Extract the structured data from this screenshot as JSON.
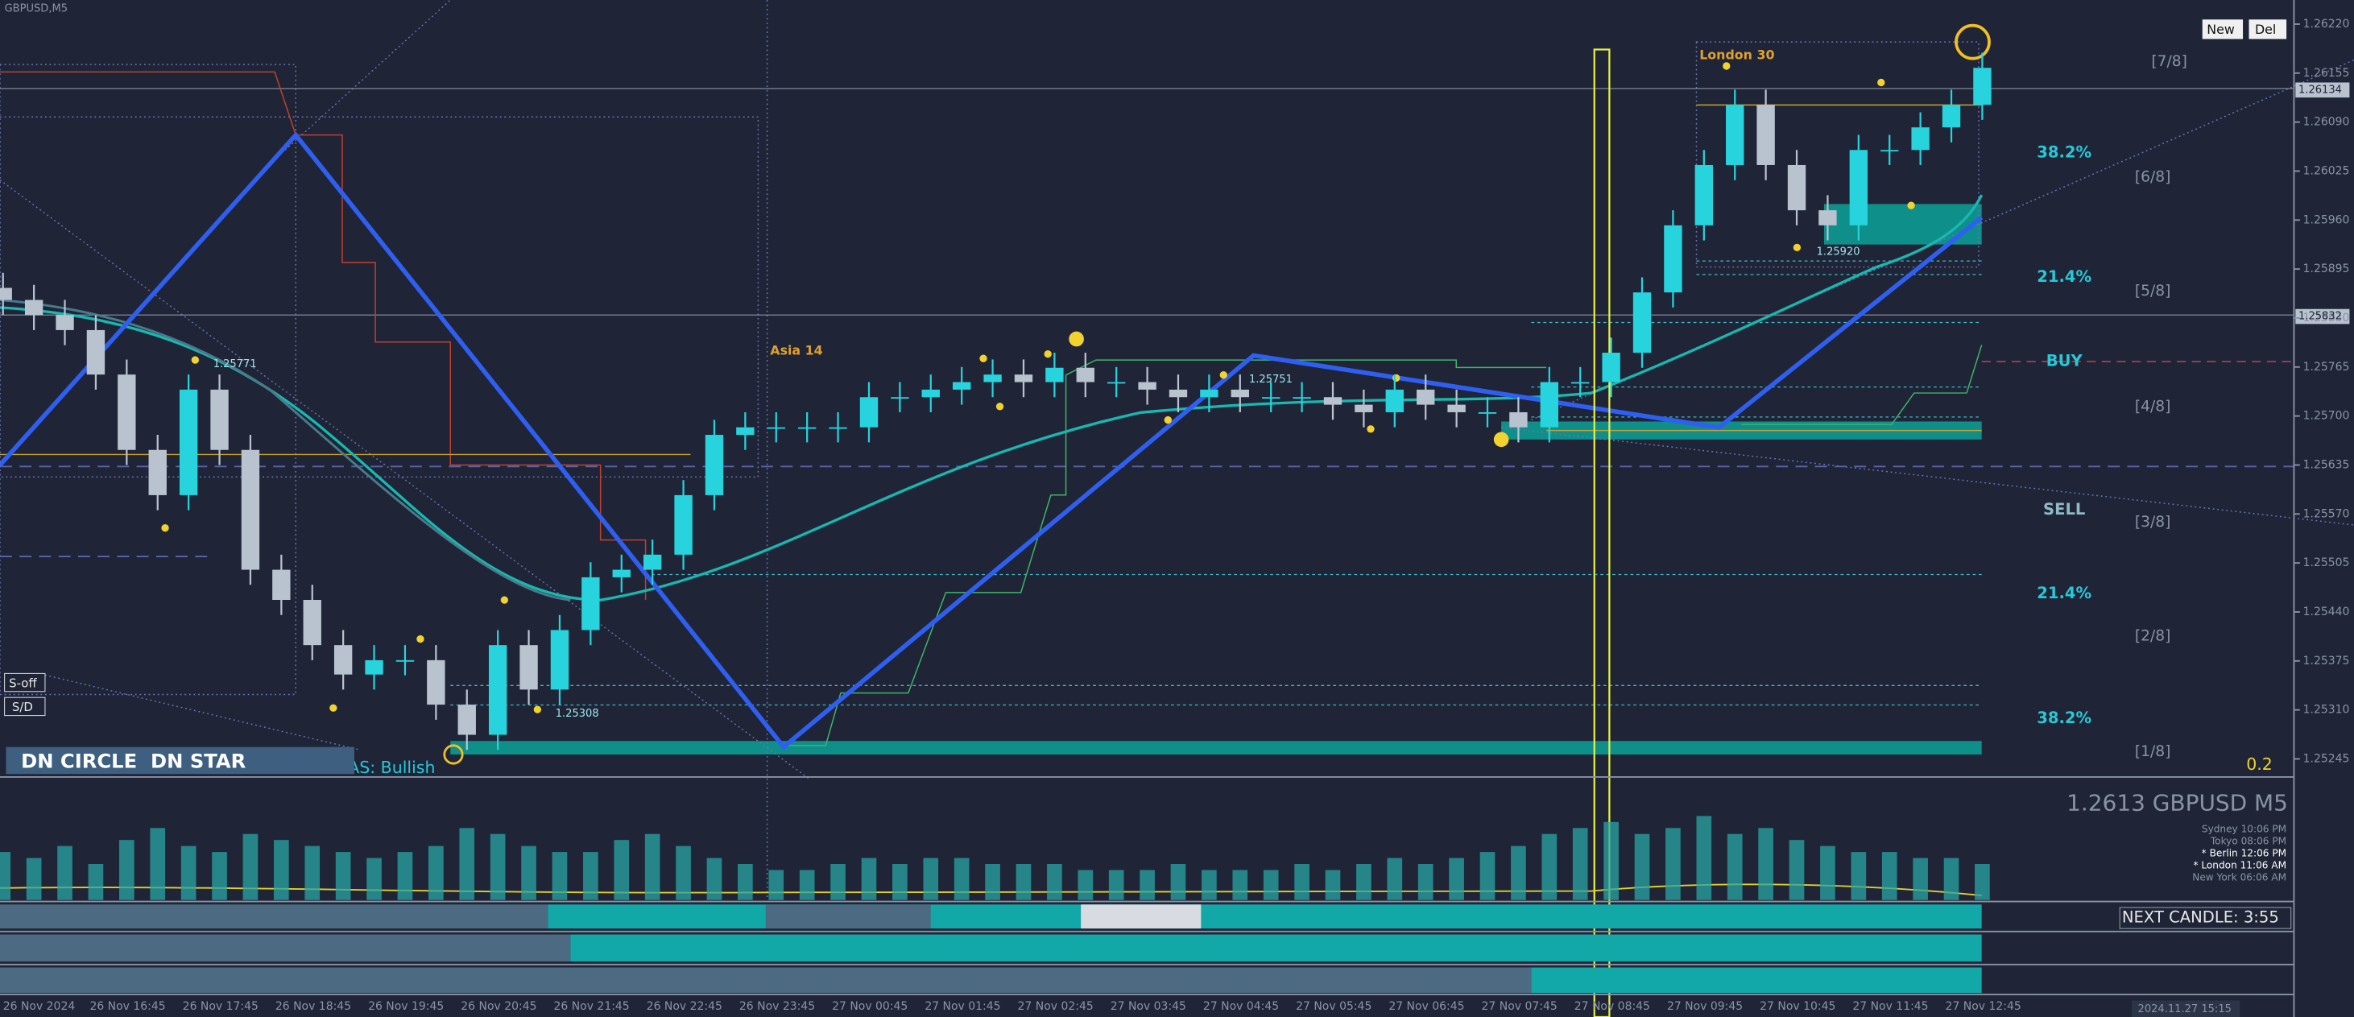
{
  "chart_data": {
    "type": "candlestick",
    "title": "GBPUSD,M5",
    "up_color": "#27d3dc",
    "down_color": "#b9c2cf",
    "volume_color": "#2aa6a6",
    "categories": [
      "26 Nov 2024",
      null,
      null,
      "26 Nov 16:45",
      null,
      null,
      "26 Nov 17:45",
      null,
      null,
      "26 Nov 18:45",
      null,
      null,
      "26 Nov 19:45",
      null,
      null,
      "26 Nov 20:45",
      null,
      null,
      "26 Nov 21:45",
      null,
      null,
      "26 Nov 22:45",
      null,
      null,
      "26 Nov 23:45",
      null,
      null,
      "27 Nov 00:45",
      null,
      null,
      "27 Nov 01:45",
      null,
      null,
      "27 Nov 02:45",
      null,
      null,
      "27 Nov 03:45",
      null,
      null,
      "27 Nov 04:45",
      null,
      null,
      "27 Nov 05:45",
      null,
      null,
      "27 Nov 06:45",
      null,
      null,
      "27 Nov 07:45",
      null,
      null,
      "27 Nov 08:45",
      null,
      null,
      "27 Nov 09:45",
      null,
      null,
      "27 Nov 10:45",
      null,
      null,
      "27 Nov 11:45",
      null,
      null,
      "27 Nov 12:45",
      null
    ],
    "open": [
      1.2587,
      1.25854,
      1.25834,
      1.25814,
      1.25755,
      1.25655,
      1.25595,
      1.25735,
      1.25655,
      1.25496,
      1.25456,
      1.25396,
      1.25357,
      1.25376,
      1.25376,
      1.25317,
      1.25277,
      1.25396,
      1.25337,
      1.25416,
      1.25486,
      1.25496,
      1.25516,
      1.25595,
      1.25675,
      1.25685,
      1.25685,
      1.25685,
      1.25685,
      1.25725,
      1.25725,
      1.25735,
      1.25745,
      1.25755,
      1.25745,
      1.25764,
      1.25745,
      1.25745,
      1.25735,
      1.25725,
      1.25735,
      1.25725,
      1.25725,
      1.25725,
      1.25715,
      1.25705,
      1.25735,
      1.25715,
      1.25705,
      1.25705,
      1.25685,
      1.25745,
      1.25745,
      1.25784,
      1.25864,
      1.25953,
      1.26033,
      1.26113,
      1.26033,
      1.25973,
      1.25953,
      1.26053,
      1.26053,
      1.26083,
      1.26113
    ],
    "high": [
      1.2589,
      1.25874,
      1.25854,
      1.25834,
      1.25775,
      1.25675,
      1.25755,
      1.25755,
      1.25675,
      1.25516,
      1.25476,
      1.25416,
      1.25396,
      1.25396,
      1.25396,
      1.25337,
      1.25416,
      1.25416,
      1.25436,
      1.25506,
      1.25516,
      1.25536,
      1.25615,
      1.25695,
      1.25705,
      1.25705,
      1.25705,
      1.25705,
      1.25745,
      1.25745,
      1.25755,
      1.25765,
      1.25775,
      1.25775,
      1.25784,
      1.25784,
      1.25765,
      1.25765,
      1.25755,
      1.25755,
      1.25755,
      1.25745,
      1.25745,
      1.25745,
      1.25735,
      1.25755,
      1.25755,
      1.25735,
      1.25725,
      1.25725,
      1.25765,
      1.25765,
      1.25804,
      1.25884,
      1.25973,
      1.26053,
      1.26133,
      1.26133,
      1.26053,
      1.25993,
      1.26073,
      1.26073,
      1.26103,
      1.26133,
      1.26182
    ],
    "low": [
      1.25834,
      1.25814,
      1.25794,
      1.25735,
      1.25635,
      1.25575,
      1.25575,
      1.25635,
      1.25476,
      1.25436,
      1.25376,
      1.25337,
      1.25337,
      1.25356,
      1.25297,
      1.25257,
      1.25257,
      1.25317,
      1.25317,
      1.25396,
      1.25466,
      1.25476,
      1.25496,
      1.25575,
      1.25655,
      1.25665,
      1.25665,
      1.25665,
      1.25665,
      1.25705,
      1.25705,
      1.25715,
      1.25725,
      1.25725,
      1.25725,
      1.25725,
      1.25725,
      1.25715,
      1.25705,
      1.25705,
      1.25705,
      1.25705,
      1.25705,
      1.25695,
      1.25685,
      1.25685,
      1.25695,
      1.25685,
      1.25685,
      1.25665,
      1.25665,
      1.25725,
      1.25725,
      1.25764,
      1.25844,
      1.25933,
      1.26013,
      1.26013,
      1.25953,
      1.25933,
      1.25933,
      1.26033,
      1.26033,
      1.26063,
      1.26093
    ],
    "close": [
      1.25854,
      1.25834,
      1.25814,
      1.25755,
      1.25655,
      1.25595,
      1.25735,
      1.25655,
      1.25496,
      1.25456,
      1.25396,
      1.25357,
      1.25376,
      1.25376,
      1.25317,
      1.25277,
      1.25396,
      1.25337,
      1.25416,
      1.25486,
      1.25496,
      1.25516,
      1.25595,
      1.25675,
      1.25685,
      1.25685,
      1.25685,
      1.25685,
      1.25725,
      1.25725,
      1.25735,
      1.25745,
      1.25755,
      1.25745,
      1.25764,
      1.25745,
      1.25745,
      1.25735,
      1.25725,
      1.25735,
      1.25725,
      1.25725,
      1.25725,
      1.25715,
      1.25705,
      1.25735,
      1.25715,
      1.25705,
      1.25705,
      1.25685,
      1.25745,
      1.25745,
      1.25784,
      1.25864,
      1.25953,
      1.26033,
      1.26113,
      1.26033,
      1.25973,
      1.25953,
      1.26053,
      1.26053,
      1.26083,
      1.26113,
      1.26162
    ],
    "volumes": [
      40,
      35,
      45,
      30,
      50,
      60,
      45,
      40,
      55,
      50,
      45,
      40,
      35,
      40,
      45,
      60,
      55,
      45,
      40,
      40,
      50,
      55,
      45,
      35,
      30,
      25,
      25,
      30,
      35,
      30,
      35,
      35,
      30,
      30,
      30,
      25,
      25,
      25,
      30,
      25,
      25,
      25,
      30,
      25,
      30,
      35,
      30,
      35,
      40,
      45,
      55,
      60,
      65,
      55,
      60,
      70,
      55,
      60,
      50,
      45,
      40,
      40,
      35,
      35,
      30
    ],
    "ylim": [
      1.25221,
      1.26252
    ],
    "yticks": [
      {
        "value": 1.2622,
        "label": "1.26220"
      },
      {
        "value": 1.26155,
        "label": "1.26155"
      },
      {
        "value": 1.2609,
        "label": "1.26090"
      },
      {
        "value": 1.26025,
        "label": "1.26025"
      },
      {
        "value": 1.2596,
        "label": "1.25960"
      },
      {
        "value": 1.25895,
        "label": "1.25895"
      },
      {
        "value": 1.2583,
        "label": "1.25830"
      },
      {
        "value": 1.25765,
        "label": "1.25765"
      },
      {
        "value": 1.257,
        "label": "1.25700"
      },
      {
        "value": 1.25635,
        "label": "1.25635"
      },
      {
        "value": 1.2557,
        "label": "1.25570"
      },
      {
        "value": 1.25505,
        "label": "1.25505"
      },
      {
        "value": 1.2544,
        "label": "1.25440"
      },
      {
        "value": 1.25375,
        "label": "1.25375"
      },
      {
        "value": 1.2531,
        "label": "1.25310"
      },
      {
        "value": 1.25245,
        "label": "1.25245"
      }
    ],
    "annotations": [
      "[7/8]",
      "[6/8]",
      "[5/8]",
      "[4/8]",
      "[3/8]",
      "[2/8]",
      "[1/8]",
      "38.2%",
      "21.4%",
      "BUY",
      "SELL",
      "21.4%",
      "38.2%",
      "0.2",
      "London 30",
      "Asia 14",
      "1.25771",
      "1.25751",
      "1.25920",
      "1.25308",
      "S-off",
      "S/D",
      "TAS: Bullish",
      "DN CIRCLE  DN STAR",
      "1.2613 GBPUSD M5",
      "Sydney 10:06 PM",
      "Tokyo 08:06 PM",
      "* Berlin 12:06 PM",
      "* London 11:06 AM",
      "New York 06:06 AM",
      "NEXT CANDLE: 3:55",
      "1.26134",
      "1.25832",
      "2024.11.27 15:15",
      "New",
      "Del"
    ]
  }
}
